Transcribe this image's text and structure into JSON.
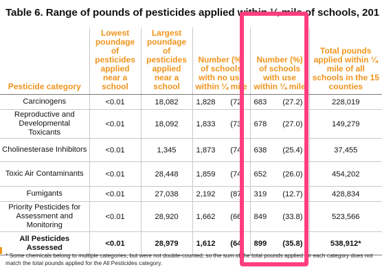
{
  "title": "Table 6. Range of pounds of pesticides applied within ¼ mile of schools, 201",
  "headers": [
    "Pesticide category",
    "Lowest poundage of pesticides applied near a school",
    "Largest poundage of pesticides applied near a school",
    "Number (%) of schools with no use within ¼ mile",
    "Number (%) of schools with use within ¼ mile",
    "Total pounds applied within ¼ mile of all schools in the 15 counties"
  ],
  "rows": [
    {
      "category": "Carcinogens",
      "lowest": "<0.01",
      "largest": "18,082",
      "no_use_n": "1,828",
      "no_use_pct": "(72.",
      "use_n": "683",
      "use_pct": "(27.2)",
      "total": "228,019"
    },
    {
      "category": "Reproductive and Developmental Toxicants",
      "lowest": "<0.01",
      "largest": "18,092",
      "no_use_n": "1,833",
      "no_use_pct": "(73.",
      "use_n": "678",
      "use_pct": "(27.0)",
      "total": "149,279"
    },
    {
      "category": "Cholinesterase Inhibitors",
      "lowest": "<0.01",
      "largest": "1,345",
      "no_use_n": "1,873",
      "no_use_pct": "(74.",
      "use_n": "638",
      "use_pct": "(25.4)",
      "total": "37,455"
    },
    {
      "category": "Toxic Air Contaminants",
      "lowest": "<0.01",
      "largest": "28,448",
      "no_use_n": "1,859",
      "no_use_pct": "(74.",
      "use_n": "652",
      "use_pct": "(26.0)",
      "total": "454,202"
    },
    {
      "category": "Fumigants",
      "lowest": "<0.01",
      "largest": "27,038",
      "no_use_n": "2,192",
      "no_use_pct": "(87.",
      "use_n": "319",
      "use_pct": "(12.7)",
      "total": "428,834"
    },
    {
      "category": "Priority Pesticides for Assessment and Monitoring",
      "lowest": "<0.01",
      "largest": "28,920",
      "no_use_n": "1,662",
      "no_use_pct": "(66.",
      "use_n": "849",
      "use_pct": "(33.8)",
      "total": "523,566"
    },
    {
      "category": "All Pesticides Assessed",
      "lowest": "<0.01",
      "largest": "28,979",
      "no_use_n": "1,612",
      "no_use_pct": "(64.",
      "use_n": "899",
      "use_pct": "(35.8)",
      "total": "538,912*"
    }
  ],
  "footnote": "* Some chemicals belong to multiple categories, but were not double-counted, so the sum of the total pounds applied for each category does not match the total pounds applied for the All Pesticides category.",
  "colors": {
    "header_orange": "#f0941c",
    "highlight_pink": "#ff3d7f"
  }
}
